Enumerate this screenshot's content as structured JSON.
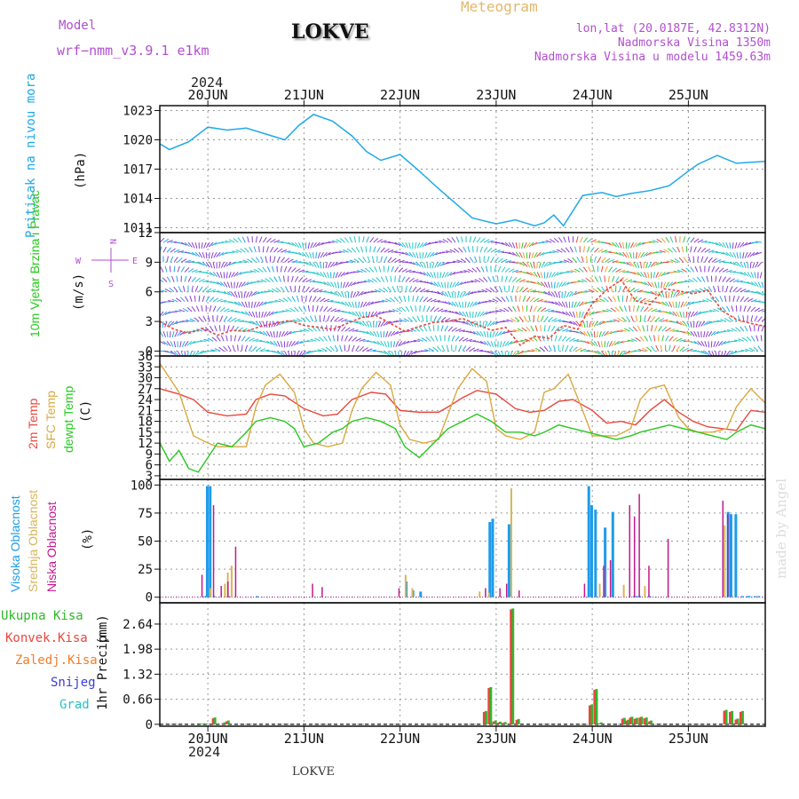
{
  "header": {
    "model_label": "Model",
    "model_name": "wrf−nmm_v3.9.1 e1km",
    "station": "LOKVE",
    "chart_kind": "Meteogram",
    "lonlat": "lon,lat (20.0187E, 42.8312N)",
    "elevation": "Nadmorska Visina 1350m",
    "elevation_model": "Nadmorska Visina u modelu 1459.63m",
    "watermark": "made by Angel",
    "footer_station": "LOKVE",
    "year_top": "2024",
    "year_bottom": "2024"
  },
  "colors": {
    "pressure": "#1fa9e8",
    "temp2m": "#e8473c",
    "sfc": "#d9a840",
    "dewpt": "#27c81e",
    "high_cloud": "#1f9be8",
    "mid_cloud": "#d8b55a",
    "low_cloud": "#c2188e",
    "total_precip": "#2fb82a",
    "conv_precip": "#e8473c",
    "frozen_precip": "#f07c2a",
    "snow": "#3b3bd6",
    "hail": "#25c3c3",
    "model_text": "#b24fcf",
    "title_gold": "#e2b86a"
  },
  "time_axis": {
    "day_labels": [
      "20JUN",
      "21JUN",
      "22JUN",
      "23JUN",
      "24JUN",
      "25JUN"
    ],
    "day_positions": [
      0.5,
      1.5,
      2.5,
      3.5,
      4.5,
      5.5
    ],
    "range": [
      0,
      6.3
    ]
  },
  "chart_data": [
    {
      "type": "line",
      "id": "pressure",
      "ylabel": "Pritisak na nivou mora",
      "unit": "(hPa)",
      "ylim": [
        1010.5,
        1023.5
      ],
      "yticks": [
        1011,
        1014,
        1017,
        1020,
        1023
      ],
      "series": [
        {
          "name": "Pritisak na nivou mora",
          "x": [
            0,
            0.1,
            0.3,
            0.5,
            0.7,
            0.9,
            1.1,
            1.3,
            1.45,
            1.6,
            1.8,
            2.0,
            2.15,
            2.3,
            2.5,
            2.7,
            2.9,
            3.1,
            3.25,
            3.5,
            3.7,
            3.9,
            4.0,
            4.1,
            4.2,
            4.4,
            4.6,
            4.75,
            4.9,
            5.1,
            5.3,
            5.5,
            5.6,
            5.8,
            6.0,
            6.3
          ],
          "values": [
            1019.6,
            1019.0,
            1019.8,
            1021.3,
            1021.0,
            1021.2,
            1020.6,
            1020.0,
            1021.5,
            1022.6,
            1021.9,
            1020.4,
            1018.8,
            1017.9,
            1018.5,
            1016.8,
            1015.0,
            1013.3,
            1012.0,
            1011.4,
            1011.8,
            1011.2,
            1011.5,
            1012.3,
            1011.2,
            1014.3,
            1014.6,
            1014.2,
            1014.5,
            1014.8,
            1015.3,
            1016.8,
            1017.5,
            1018.4,
            1017.6,
            1017.8
          ]
        }
      ]
    },
    {
      "type": "line",
      "id": "wind",
      "ylabel": "10m Vjetar Brzina i Pravac",
      "unit": "(m/s)",
      "compass": {
        "n": "N",
        "e": "E",
        "s": "S",
        "w": "W"
      },
      "ylim": [
        -0.5,
        12
      ],
      "yticks": [
        0,
        3,
        6,
        9,
        12
      ],
      "series": [
        {
          "name": "10m Vjetar",
          "x": [
            0,
            0.15,
            0.3,
            0.45,
            0.6,
            0.75,
            0.9,
            1.05,
            1.2,
            1.35,
            1.5,
            1.65,
            1.8,
            1.95,
            2.1,
            2.25,
            2.4,
            2.55,
            2.7,
            2.85,
            3.0,
            3.15,
            3.3,
            3.45,
            3.6,
            3.75,
            3.9,
            4.05,
            4.2,
            4.35,
            4.5,
            4.65,
            4.8,
            4.95,
            5.1,
            5.25,
            5.4,
            5.55,
            5.7,
            5.85,
            6.0,
            6.15,
            6.3
          ],
          "values": [
            3.0,
            2.2,
            1.8,
            2.3,
            1.6,
            2.1,
            2.0,
            2.5,
            2.8,
            3.1,
            2.6,
            2.4,
            2.2,
            2.8,
            3.4,
            3.6,
            2.8,
            2.0,
            2.5,
            2.9,
            3.0,
            3.3,
            2.7,
            2.1,
            2.4,
            0.6,
            1.5,
            1.3,
            2.6,
            2.2,
            4.8,
            6.2,
            7.2,
            5.1,
            4.7,
            6.3,
            6.1,
            5.8,
            6.2,
            4.1,
            3.2,
            2.8,
            2.5
          ]
        }
      ]
    },
    {
      "type": "line",
      "id": "temperature",
      "unit": "(C)",
      "ylim": [
        2,
        36
      ],
      "yticks": [
        3,
        6,
        9,
        12,
        15,
        18,
        21,
        24,
        27,
        30,
        33,
        36
      ],
      "series": [
        {
          "name": "2m Temp",
          "x": [
            0,
            0.2,
            0.35,
            0.5,
            0.7,
            0.9,
            1.0,
            1.15,
            1.3,
            1.5,
            1.7,
            1.85,
            2.0,
            2.2,
            2.35,
            2.5,
            2.7,
            2.9,
            3.0,
            3.15,
            3.3,
            3.5,
            3.7,
            3.85,
            4.0,
            4.15,
            4.3,
            4.5,
            4.65,
            4.8,
            4.95,
            5.1,
            5.25,
            5.4,
            5.55,
            5.7,
            5.85,
            6.0,
            6.15,
            6.3
          ],
          "values": [
            27,
            25.5,
            24,
            20.5,
            19.5,
            20,
            24,
            25.5,
            25,
            21.5,
            19.5,
            20,
            24,
            26,
            25.5,
            21,
            20.5,
            20.5,
            22,
            24.5,
            26.5,
            25.5,
            21.5,
            20.5,
            21,
            23.5,
            24,
            21,
            17.5,
            18,
            17,
            21,
            24,
            20.5,
            18,
            16.5,
            16,
            15.5,
            21,
            20.5
          ]
        },
        {
          "name": "SFC Temp",
          "x": [
            0,
            0.1,
            0.2,
            0.35,
            0.5,
            0.6,
            0.75,
            0.9,
            1.0,
            1.1,
            1.25,
            1.4,
            1.5,
            1.6,
            1.75,
            1.9,
            2.0,
            2.1,
            2.25,
            2.4,
            2.5,
            2.6,
            2.75,
            2.9,
            3.0,
            3.1,
            3.25,
            3.4,
            3.5,
            3.6,
            3.75,
            3.9,
            4.0,
            4.1,
            4.25,
            4.4,
            4.5,
            4.6,
            4.75,
            4.9,
            5.0,
            5.1,
            5.25,
            5.4,
            5.5,
            5.6,
            5.75,
            5.9,
            6.0,
            6.15,
            6.3
          ],
          "values": [
            34,
            30,
            26,
            14,
            12,
            11,
            11,
            11,
            22,
            28,
            31,
            26,
            16,
            12,
            11,
            12,
            21,
            27,
            31.5,
            28,
            17,
            13,
            12,
            13,
            20,
            27,
            32.5,
            29,
            16,
            14,
            13,
            15,
            26,
            27,
            31,
            21,
            14,
            14,
            14,
            16,
            24,
            27,
            28,
            19,
            16,
            15,
            15,
            16,
            22,
            27,
            23
          ]
        },
        {
          "name": "dewpt Temp",
          "x": [
            0,
            0.1,
            0.2,
            0.3,
            0.4,
            0.5,
            0.6,
            0.75,
            0.9,
            1.0,
            1.15,
            1.3,
            1.4,
            1.5,
            1.65,
            1.8,
            1.9,
            2.0,
            2.15,
            2.3,
            2.45,
            2.55,
            2.7,
            2.85,
            3.0,
            3.15,
            3.3,
            3.45,
            3.6,
            3.75,
            3.9,
            4.0,
            4.15,
            4.3,
            4.45,
            4.6,
            4.75,
            4.9,
            5.0,
            5.15,
            5.3,
            5.45,
            5.6,
            5.75,
            5.9,
            6.0,
            6.15,
            6.3
          ],
          "values": [
            12,
            7,
            10,
            5,
            4,
            8,
            12,
            11,
            15,
            18,
            19,
            18,
            16,
            11,
            12,
            15,
            16,
            18,
            19,
            18,
            16,
            11,
            8,
            12,
            16,
            18,
            20,
            18,
            15,
            15,
            14,
            15,
            17,
            16,
            15,
            14,
            13,
            14,
            15,
            16,
            17,
            16,
            15,
            14,
            13,
            15,
            17,
            16
          ]
        }
      ]
    },
    {
      "type": "bar",
      "id": "clouds",
      "unit": "(%)",
      "ylim": [
        -5,
        105
      ],
      "yticks": [
        0,
        25,
        50,
        75,
        100
      ],
      "legend": [
        "Visoka Oblacnost",
        "Srednja Oblacnost",
        "Niska Oblacnost"
      ],
      "high_x": [
        0.46,
        0.48,
        0.51,
        0.55,
        0.7,
        1.0,
        2.55,
        2.62,
        2.7,
        3.42,
        3.45,
        3.62,
        4.45,
        4.48,
        4.52,
        4.62,
        4.7,
        4.92,
        4.95,
        4.98,
        5.08,
        5.9,
        5.93,
        5.98,
        6.05,
        6.1,
        6.12,
        6.18,
        6.22
      ],
      "high_v": [
        1,
        99,
        99,
        1,
        1,
        1,
        14,
        6,
        5,
        67,
        70,
        65,
        99,
        82,
        78,
        62,
        76,
        1,
        1,
        1,
        1,
        76,
        74,
        74,
        1,
        1,
        1,
        1,
        1
      ],
      "mid_x": [
        0.5,
        0.65,
        0.68,
        0.72,
        2.53,
        2.6,
        3.3,
        3.4,
        3.63,
        4.55,
        4.8,
        5.02,
        5.85
      ],
      "mid_v": [
        8,
        12,
        22,
        28,
        20,
        8,
        5,
        4,
        97,
        12,
        11,
        10,
        64
      ],
      "low_x": [
        0.4,
        0.52,
        0.6,
        0.67,
        0.75,
        1.55,
        1.65,
        2.45,
        3.35,
        3.5,
        3.57,
        3.7,
        4.38,
        4.58,
        4.65,
        4.85,
        4.9,
        4.95,
        5.05,
        5.25,
        5.82,
        5.87
      ],
      "low_v": [
        20,
        82,
        10,
        14,
        45,
        12,
        9,
        8,
        8,
        8,
        12,
        6,
        12,
        28,
        33,
        82,
        72,
        92,
        28,
        52,
        86,
        74
      ]
    },
    {
      "type": "bar",
      "id": "precip",
      "ylabel": "1hr Precip",
      "unit": "(mm)",
      "ylim": [
        -0.05,
        3.2
      ],
      "yticks": [
        0,
        0.66,
        1.32,
        1.98,
        2.64
      ],
      "ytick_labels": [
        "0",
        "0.66",
        "1.32",
        "1.98",
        "2.64"
      ],
      "legend": [
        "Ukupna Kisa",
        "Konvek.Kisa",
        "Zaledj.Kisa",
        "Snijeg",
        "Grad"
      ],
      "x": [
        0.42,
        0.47,
        0.56,
        0.66,
        0.7,
        3.38,
        3.43,
        3.48,
        3.53,
        3.58,
        3.66,
        3.72,
        4.48,
        4.53,
        4.58,
        4.82,
        4.86,
        4.9,
        4.95,
        5.0,
        5.05,
        5.1,
        5.88,
        5.94,
        6.0,
        6.05
      ],
      "values": [
        0.02,
        0.02,
        0.18,
        0.05,
        0.1,
        0.35,
        0.98,
        0.1,
        0.07,
        0.06,
        3.05,
        0.14,
        0.52,
        0.93,
        0.05,
        0.17,
        0.12,
        0.2,
        0.17,
        0.2,
        0.18,
        0.1,
        0.38,
        0.35,
        0.15,
        0.35
      ]
    }
  ],
  "panel_labels": {
    "wind_sub": "Brzina i Pravac",
    "temp_2m": "2m Temp",
    "temp_sfc": "SFC Temp",
    "temp_dew": "dewpt Temp",
    "cloud_high": "Visoka Oblacnost",
    "cloud_mid": "Srednja Oblacnost",
    "cloud_low": "Niska Oblacnost"
  }
}
